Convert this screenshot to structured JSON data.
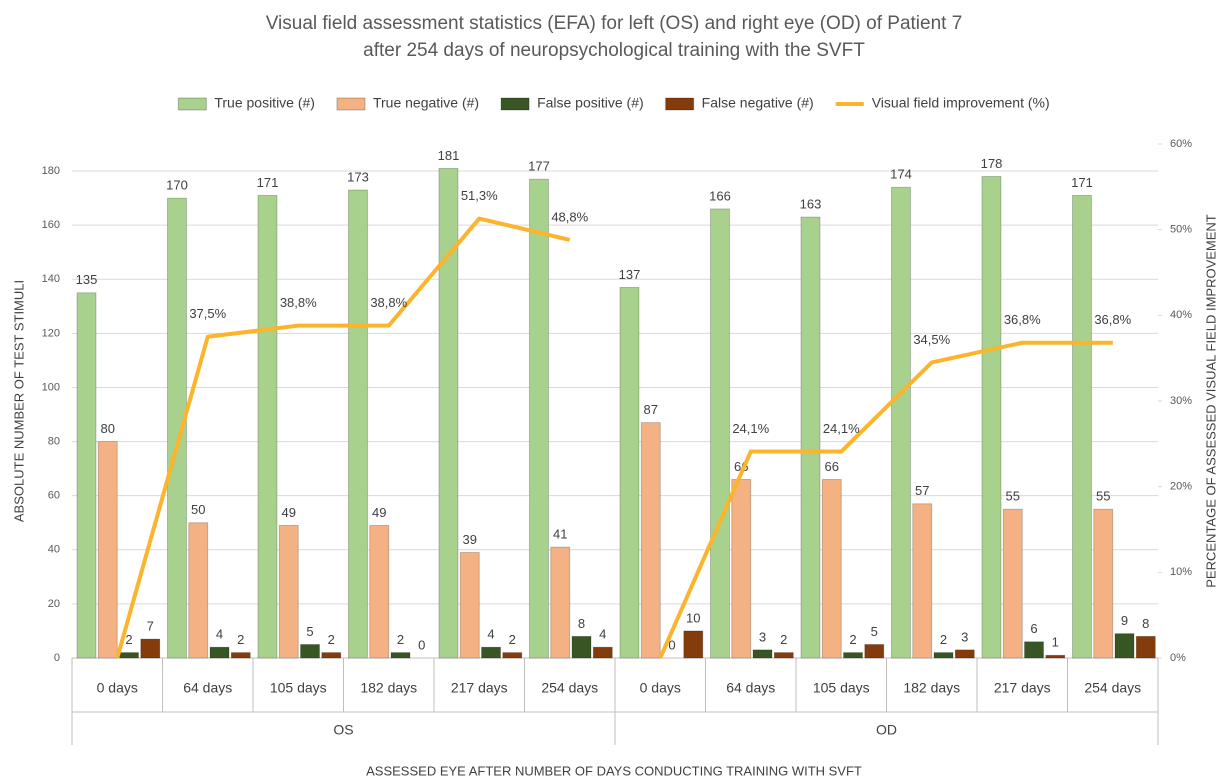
{
  "chart_data": {
    "type": "bar",
    "title": [
      "Visual field assessment statistics (EFA) for left (OS) and right eye (OD) of Patient 7",
      "after 254 days of neuropsychological training with the SVFT"
    ],
    "xlabel": "ASSESSED EYE AFTER NUMBER OF DAYS CONDUCTING TRAINING WITH SVFT",
    "ylabel": "ABSOLUTE NUMBER OF TEST STIMULI",
    "y2label": "PERCENTAGE OF ASSESSED VISUAL FIELD IMPROVEMENT",
    "categories": [
      "0 days",
      "64 days",
      "105 days",
      "182 days",
      "217 days",
      "254 days",
      "0 days",
      "64 days",
      "105 days",
      "182 days",
      "217 days",
      "254 days"
    ],
    "category_groups": [
      "OS",
      "OD"
    ],
    "series": [
      {
        "name": "True positive (#)",
        "type": "bar",
        "color": "#a9d18e",
        "values": [
          135,
          170,
          171,
          173,
          181,
          177,
          137,
          166,
          163,
          174,
          178,
          171
        ]
      },
      {
        "name": "True negative (#)",
        "type": "bar",
        "color": "#f4b183",
        "values": [
          80,
          50,
          49,
          49,
          39,
          41,
          87,
          66,
          66,
          57,
          55,
          55
        ]
      },
      {
        "name": "False positive (#)",
        "type": "bar",
        "color": "#375623",
        "values": [
          2,
          4,
          5,
          2,
          4,
          8,
          0,
          3,
          2,
          2,
          6,
          9
        ]
      },
      {
        "name": "False negative (#)",
        "type": "bar",
        "color": "#843c0c",
        "values": [
          7,
          2,
          2,
          0,
          2,
          4,
          10,
          2,
          5,
          3,
          1,
          8
        ]
      },
      {
        "name": "Visual field improvement (%)",
        "type": "line",
        "axis": "y2",
        "color": "#fbb42c",
        "values": [
          0,
          37.5,
          38.8,
          38.8,
          51.3,
          48.8,
          0,
          24.1,
          24.1,
          34.5,
          36.8,
          36.8
        ],
        "value_labels": [
          null,
          "37,5%",
          "38,8%",
          "38,8%",
          "51,3%",
          "48,8%",
          null,
          "24,1%",
          "24,1%",
          "34,5%",
          "36,8%",
          "36,8%"
        ]
      }
    ],
    "ylim": [
      0,
      190
    ],
    "yticks": [
      0,
      20,
      40,
      60,
      80,
      100,
      120,
      140,
      160,
      180
    ],
    "y2lim": [
      0,
      60
    ],
    "y2ticks": [
      {
        "value": 0,
        "label": "0%"
      },
      {
        "value": 10,
        "label": "10%"
      },
      {
        "value": 20,
        "label": "20%"
      },
      {
        "value": 30,
        "label": "30%"
      },
      {
        "value": 40,
        "label": "40%"
      },
      {
        "value": 50,
        "label": "50%"
      },
      {
        "value": 60,
        "label": "60%"
      }
    ],
    "grid": true,
    "legend": "top"
  }
}
